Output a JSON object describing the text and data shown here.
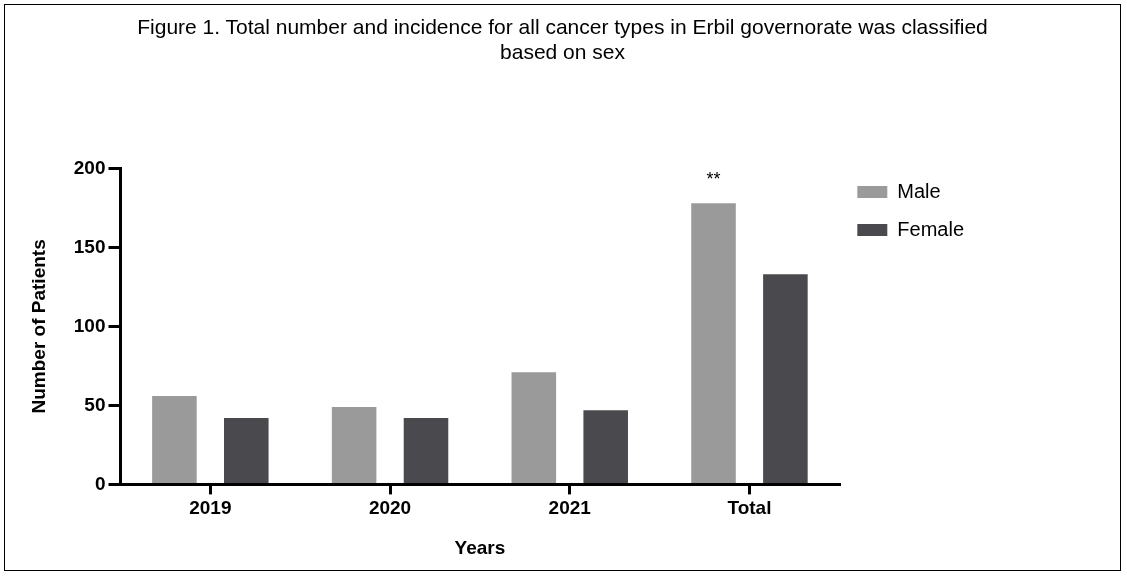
{
  "chart_data": {
    "type": "bar",
    "title": "Figure 1. Total number and incidence for all cancer types in Erbil governorate was classified based on sex",
    "xlabel": "Years",
    "ylabel": "Number of Patients",
    "categories": [
      "2019",
      "2020",
      "2021",
      "Total"
    ],
    "series": [
      {
        "name": "Male",
        "color": "#9a9a9a",
        "values": [
          56,
          49,
          71,
          178
        ]
      },
      {
        "name": "Female",
        "color": "#4a4a4e",
        "values": [
          42,
          42,
          47,
          133
        ]
      }
    ],
    "ylim": [
      0,
      200
    ],
    "yticks": [
      0,
      50,
      100,
      150,
      200
    ],
    "grid": false,
    "legend": "top right",
    "annotations": [
      "**"
    ]
  }
}
